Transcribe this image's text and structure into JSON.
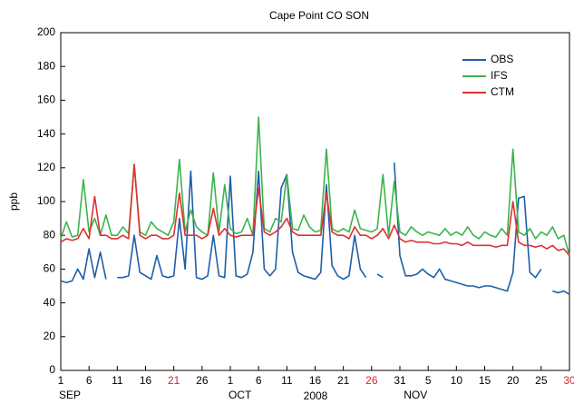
{
  "chart_data": {
    "type": "line",
    "title": "Cape Point CO SON",
    "ylabel": "ppb",
    "xlabel": "2008",
    "xlim": [
      0,
      90
    ],
    "ylim": [
      0,
      200
    ],
    "yticks": [
      0,
      20,
      40,
      60,
      80,
      100,
      120,
      140,
      160,
      180,
      200
    ],
    "xticks": [
      {
        "value": 0,
        "label": "1"
      },
      {
        "value": 5,
        "label": "6"
      },
      {
        "value": 10,
        "label": "11"
      },
      {
        "value": 15,
        "label": "16"
      },
      {
        "value": 20,
        "label": "21",
        "color": "#d62728"
      },
      {
        "value": 25,
        "label": "26"
      },
      {
        "value": 30,
        "label": "1"
      },
      {
        "value": 35,
        "label": "6"
      },
      {
        "value": 40,
        "label": "11"
      },
      {
        "value": 45,
        "label": "16"
      },
      {
        "value": 50,
        "label": "21"
      },
      {
        "value": 55,
        "label": "26",
        "color": "#d62728"
      },
      {
        "value": 60,
        "label": "31"
      },
      {
        "value": 65,
        "label": "5"
      },
      {
        "value": 70,
        "label": "10"
      },
      {
        "value": 75,
        "label": "15"
      },
      {
        "value": 80,
        "label": "20"
      },
      {
        "value": 85,
        "label": "25"
      },
      {
        "value": 90,
        "label": "30",
        "color": "#d62728"
      }
    ],
    "month_labels": [
      {
        "value": 0,
        "label": "SEP"
      },
      {
        "value": 30,
        "label": "OCT"
      },
      {
        "value": 61,
        "label": "NOV"
      }
    ],
    "legend": "upper right",
    "x": [
      0,
      1,
      2,
      3,
      4,
      5,
      6,
      7,
      8,
      9,
      10,
      11,
      12,
      13,
      14,
      15,
      16,
      17,
      18,
      19,
      20,
      21,
      22,
      23,
      24,
      25,
      26,
      27,
      28,
      29,
      30,
      31,
      32,
      33,
      34,
      35,
      36,
      37,
      38,
      39,
      40,
      41,
      42,
      43,
      44,
      45,
      46,
      47,
      48,
      49,
      50,
      51,
      52,
      53,
      54,
      55,
      56,
      57,
      58,
      59,
      60,
      61,
      62,
      63,
      64,
      65,
      66,
      67,
      68,
      69,
      70,
      71,
      72,
      73,
      74,
      75,
      76,
      77,
      78,
      79,
      80,
      81,
      82,
      83,
      84,
      85,
      86,
      87,
      88,
      89,
      90
    ],
    "series": [
      {
        "name": "OBS",
        "color": "#1f5fa8",
        "values": [
          53,
          52,
          53,
          60,
          54,
          72,
          55,
          70,
          54,
          null,
          55,
          55,
          56,
          80,
          58,
          56,
          54,
          68,
          56,
          55,
          56,
          90,
          60,
          118,
          55,
          54,
          56,
          80,
          56,
          55,
          115,
          56,
          55,
          57,
          70,
          118,
          60,
          56,
          60,
          108,
          116,
          70,
          58,
          56,
          55,
          54,
          58,
          110,
          62,
          56,
          54,
          56,
          80,
          60,
          55,
          null,
          57,
          55,
          null,
          123,
          68,
          56,
          56,
          57,
          60,
          57,
          55,
          60,
          54,
          53,
          52,
          51,
          50,
          50,
          49,
          50,
          50,
          49,
          48,
          47,
          58,
          102,
          103,
          58,
          55,
          60,
          null,
          47,
          46,
          47,
          45
        ]
      },
      {
        "name": "IFS",
        "color": "#3cb44b",
        "values": [
          78,
          88,
          79,
          80,
          113,
          82,
          90,
          80,
          92,
          80,
          80,
          85,
          81,
          122,
          82,
          80,
          88,
          84,
          82,
          80,
          88,
          125,
          82,
          95,
          85,
          82,
          80,
          117,
          82,
          110,
          84,
          81,
          82,
          90,
          80,
          150,
          84,
          82,
          90,
          88,
          116,
          84,
          83,
          92,
          85,
          82,
          83,
          131,
          84,
          82,
          84,
          82,
          95,
          84,
          83,
          82,
          84,
          116,
          80,
          112,
          82,
          80,
          85,
          82,
          80,
          82,
          81,
          80,
          84,
          80,
          82,
          80,
          85,
          80,
          78,
          82,
          80,
          79,
          84,
          80,
          131,
          82,
          80,
          84,
          78,
          82,
          80,
          85,
          78,
          80,
          68
        ]
      },
      {
        "name": "CTM",
        "color": "#e03030",
        "values": [
          76,
          78,
          77,
          78,
          84,
          78,
          103,
          80,
          80,
          78,
          78,
          80,
          78,
          122,
          80,
          78,
          80,
          80,
          78,
          78,
          80,
          105,
          80,
          80,
          80,
          78,
          80,
          96,
          80,
          84,
          80,
          79,
          80,
          80,
          80,
          108,
          82,
          80,
          82,
          85,
          90,
          82,
          80,
          80,
          80,
          80,
          80,
          105,
          82,
          80,
          80,
          78,
          85,
          80,
          80,
          78,
          80,
          84,
          78,
          86,
          78,
          76,
          77,
          76,
          76,
          76,
          75,
          75,
          76,
          75,
          75,
          74,
          76,
          74,
          74,
          74,
          74,
          73,
          74,
          74,
          100,
          76,
          74,
          74,
          73,
          74,
          72,
          74,
          71,
          72,
          68
        ]
      }
    ]
  }
}
